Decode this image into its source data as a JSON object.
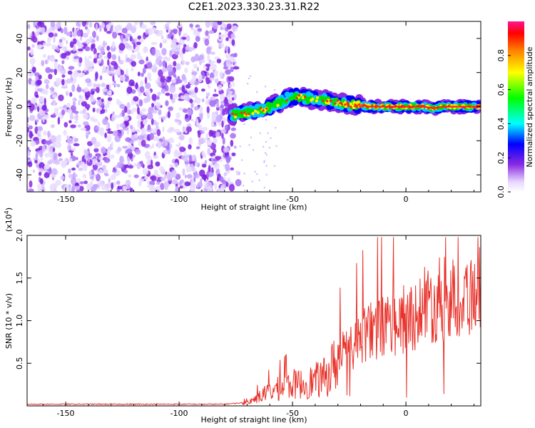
{
  "title": "C2E1.2023.330.23.31.R22",
  "chart_data": [
    {
      "type": "heatmap",
      "name": "spectrogram",
      "xlabel": "Height of straight line (km)",
      "ylabel": "Frequency (Hz)",
      "xlim": [
        -167,
        33
      ],
      "ylim": [
        -50,
        50
      ],
      "xticks": [
        -150,
        -100,
        -50,
        0
      ],
      "xtick_labels": [
        "-150",
        "-100",
        "-50",
        "0"
      ],
      "yticks": [
        -40,
        -20,
        0,
        20,
        40
      ],
      "ytick_labels": [
        "-40",
        "-20",
        "0",
        "20",
        "40"
      ],
      "noise_region_x": [
        -167,
        -75
      ],
      "signal_track": {
        "x": [
          -77,
          -72,
          -68,
          -64,
          -60,
          -56,
          -52,
          -48,
          -44,
          -40,
          -36,
          -32,
          -28,
          -24,
          -20,
          -16,
          -12,
          -8,
          -4,
          0,
          4,
          8,
          12,
          16,
          20,
          24,
          28,
          33
        ],
        "y": [
          -5,
          -4,
          -3,
          -2,
          0,
          2,
          5,
          6,
          5,
          4,
          4,
          3,
          2,
          1,
          1,
          0,
          0,
          0,
          0,
          0,
          0,
          0,
          -1,
          0,
          0,
          0,
          0,
          0
        ]
      },
      "colorbar": {
        "label": "Normalized spectral amplitude",
        "range": [
          0.0,
          1.0
        ],
        "ticks": [
          0.0,
          0.2,
          0.4,
          0.6,
          0.8
        ],
        "tick_labels": [
          "0.0",
          "0.2",
          "0.4",
          "0.6",
          "0.8"
        ]
      }
    },
    {
      "type": "line",
      "name": "snr",
      "xlabel": "Height of straight line (km)",
      "ylabel": "SNR (10 * v/v)",
      "scale_label": "(x10",
      "scale_exponent": "4",
      "scale_close": ")",
      "xlim": [
        -167,
        33
      ],
      "ylim": [
        0,
        2.0
      ],
      "xticks": [
        -150,
        -100,
        -50,
        0
      ],
      "xtick_labels": [
        "-150",
        "-100",
        "-50",
        "0"
      ],
      "yticks": [
        0.5,
        1.0,
        1.5,
        2.0
      ],
      "ytick_labels": [
        "0.5",
        "1.0",
        "1.5",
        "2.0"
      ],
      "color": "#e8322a",
      "envelope": {
        "x": [
          -167,
          -80,
          -70,
          -65,
          -60,
          -55,
          -50,
          -45,
          -40,
          -35,
          -30,
          -25,
          -20,
          -15,
          -10,
          -5,
          0,
          5,
          10,
          15,
          20,
          25,
          30,
          33
        ],
        "y": [
          0.02,
          0.02,
          0.04,
          0.12,
          0.2,
          0.25,
          0.3,
          0.3,
          0.35,
          0.4,
          0.65,
          0.7,
          0.85,
          0.95,
          1.0,
          1.05,
          1.1,
          1.2,
          1.3,
          1.35,
          1.35,
          1.4,
          1.45,
          1.55
        ]
      }
    }
  ]
}
